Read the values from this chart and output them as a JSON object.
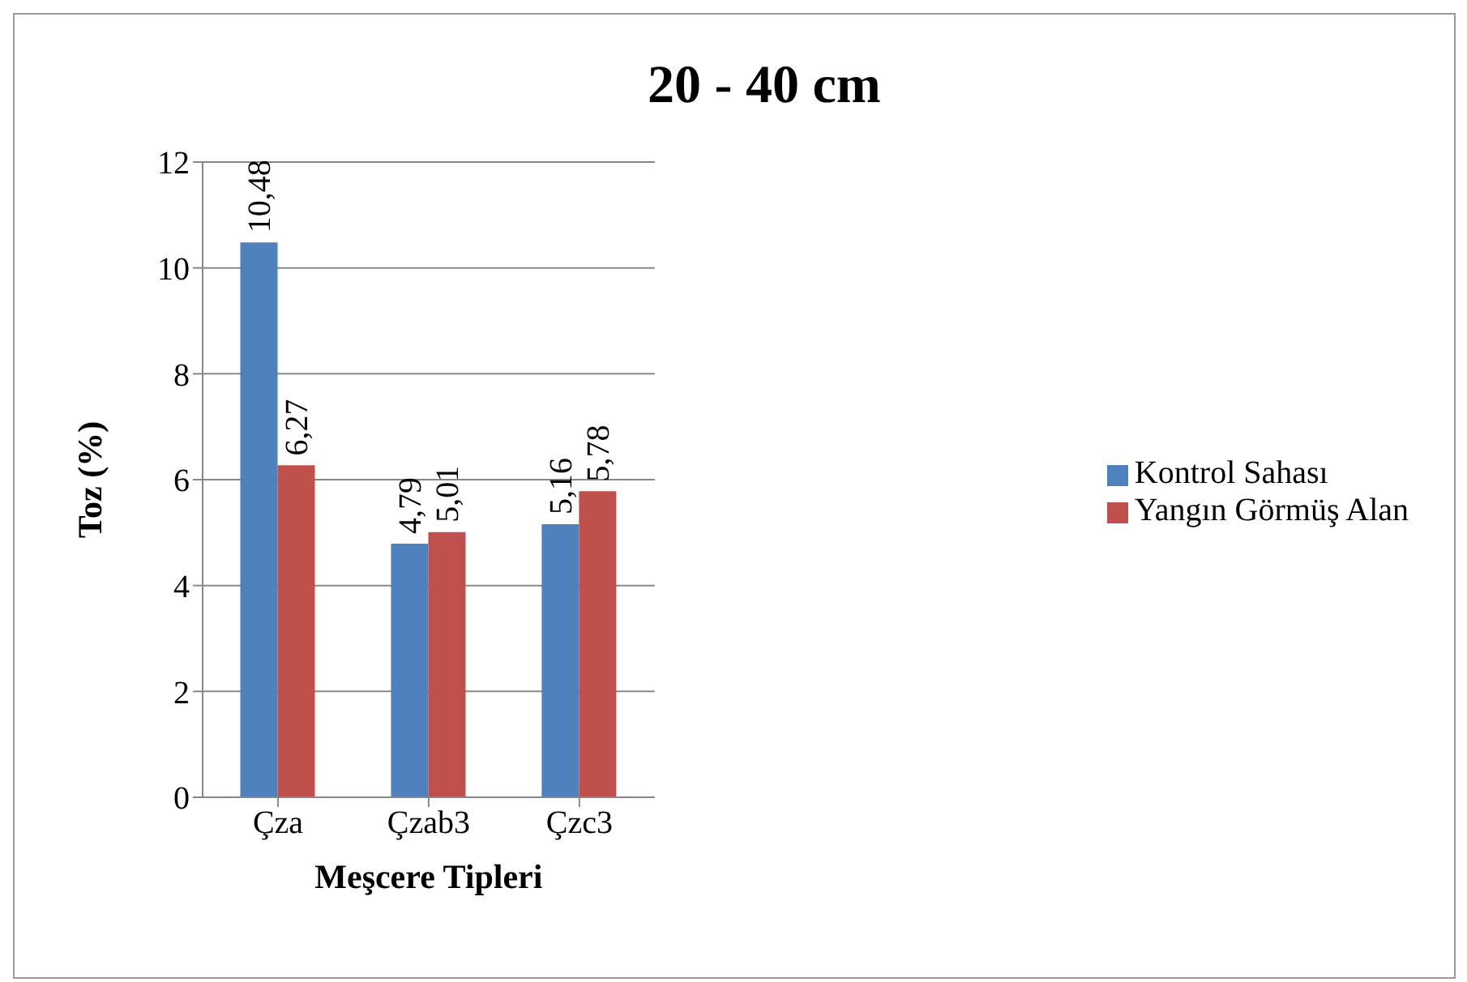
{
  "chart_data": {
    "type": "bar",
    "title": "20 - 40 cm",
    "xlabel": "Meşcere Tipleri",
    "ylabel": "Toz (%)",
    "categories": [
      "Çza",
      "Çzab3",
      "Çzc3"
    ],
    "series": [
      {
        "name": "Kontrol Sahası",
        "color": "#4f81bd",
        "values": [
          10.48,
          4.79,
          5.16
        ],
        "value_labels": [
          "10,48",
          "4,79",
          "5,16"
        ]
      },
      {
        "name": "Yangın Görmüş Alan",
        "color": "#c0504d",
        "values": [
          6.27,
          5.01,
          5.78
        ],
        "value_labels": [
          "6,27",
          "5,01",
          "5,78"
        ]
      }
    ],
    "ylim": [
      0,
      12
    ],
    "yticks": [
      0,
      2,
      4,
      6,
      8,
      10,
      12
    ],
    "grid": "y",
    "legend": "right"
  }
}
